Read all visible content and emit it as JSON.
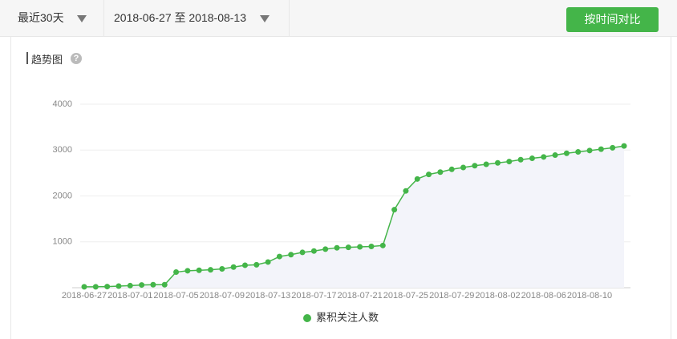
{
  "toolbar": {
    "range_select": "最近30天",
    "date_range": "2018-06-27 至 2018-08-13",
    "compare_button": "按时间对比"
  },
  "panel": {
    "title": "趋势图"
  },
  "chart_data": {
    "type": "line",
    "categories": [
      "2018-06-27",
      null,
      null,
      null,
      "2018-07-01",
      null,
      null,
      null,
      "2018-07-05",
      null,
      null,
      null,
      "2018-07-09",
      null,
      null,
      null,
      "2018-07-13",
      null,
      null,
      null,
      "2018-07-17",
      null,
      null,
      null,
      "2018-07-21",
      null,
      null,
      null,
      "2018-07-25",
      null,
      null,
      null,
      "2018-07-29",
      null,
      null,
      null,
      "2018-08-02",
      null,
      null,
      null,
      "2018-08-06",
      null,
      null,
      null,
      "2018-08-10",
      null,
      null,
      null
    ],
    "series": [
      {
        "name": "累积关注人数",
        "color": "#44b549",
        "values": [
          20,
          20,
          25,
          35,
          45,
          60,
          65,
          65,
          340,
          370,
          380,
          390,
          410,
          450,
          490,
          500,
          560,
          680,
          720,
          770,
          800,
          840,
          870,
          880,
          890,
          900,
          920,
          1700,
          2110,
          2370,
          2470,
          2520,
          2580,
          2620,
          2660,
          2690,
          2720,
          2750,
          2790,
          2820,
          2850,
          2890,
          2930,
          2960,
          2990,
          3020,
          3050,
          3090
        ]
      }
    ],
    "ylim": [
      0,
      4000
    ],
    "yticks": [
      1000,
      2000,
      3000,
      4000
    ],
    "grid": true
  }
}
